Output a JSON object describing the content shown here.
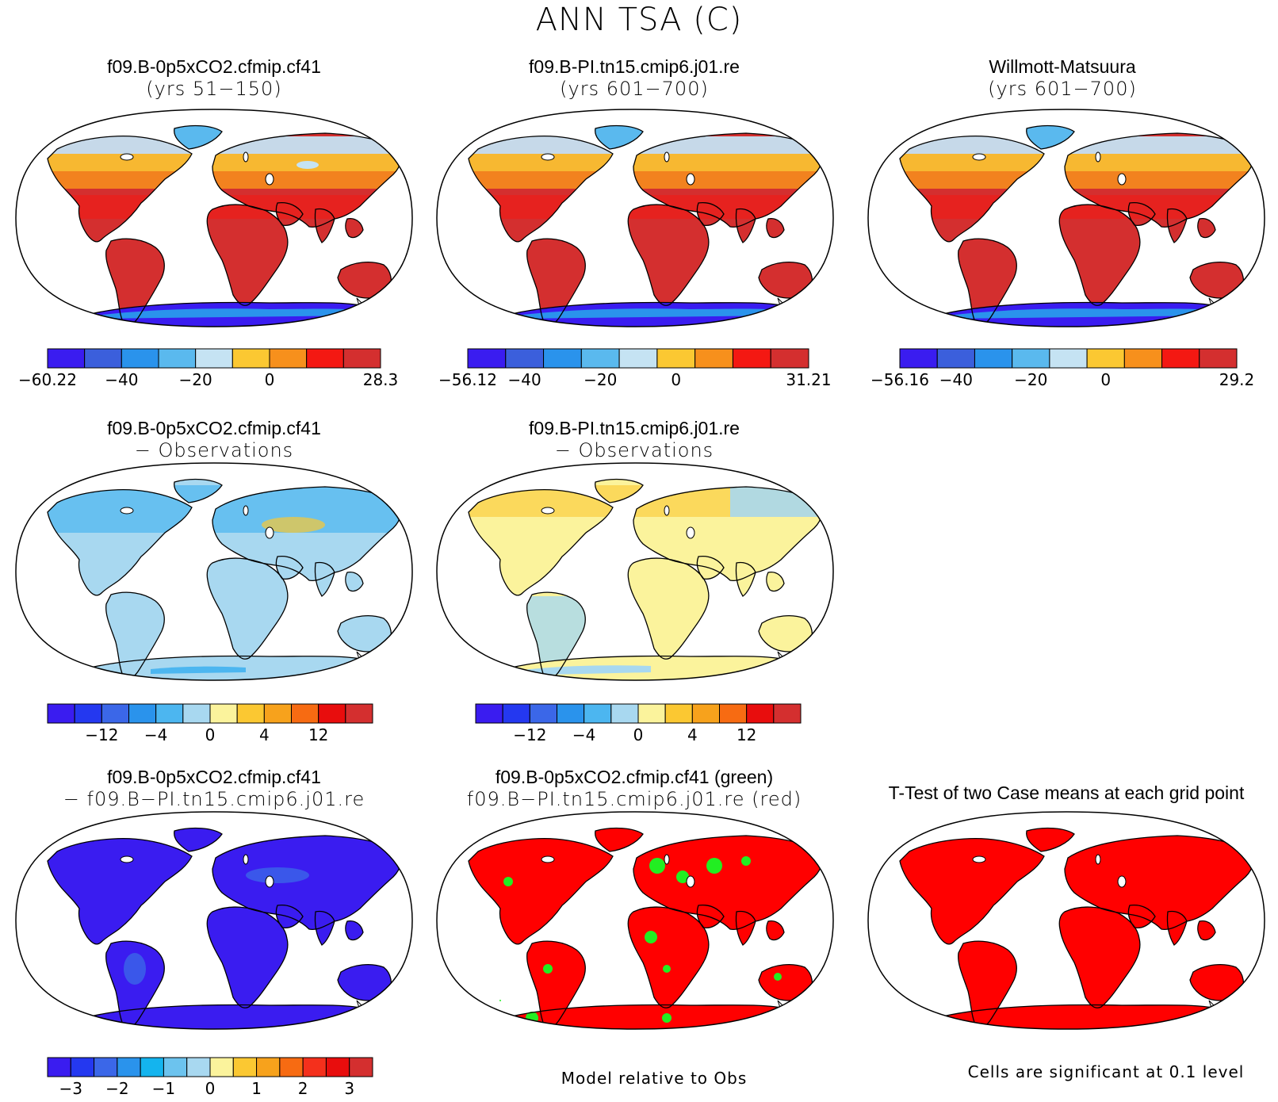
{
  "figure": {
    "title": "ANN TSA (C)"
  },
  "panels": [
    {
      "id": "r1c1",
      "title1": "f09.B-0p5xCO2.cfmip.cf41",
      "title2": "(yrs 51−150)",
      "map_style": "abs-case1"
    },
    {
      "id": "r1c2",
      "title1": "f09.B-PI.tn15.cmip6.j01.re",
      "title2": "(yrs 601−700)",
      "map_style": "abs-case2"
    },
    {
      "id": "r1c3",
      "title1": "Willmott-Matsuura",
      "title2": "(yrs 601−700)",
      "map_style": "abs-obs"
    },
    {
      "id": "r2c1",
      "title1": "f09.B-0p5xCO2.cfmip.cf41",
      "title2": "− Observations",
      "map_style": "diff-cool"
    },
    {
      "id": "r2c2",
      "title1": "f09.B-PI.tn15.cmip6.j01.re",
      "title2": "− Observations",
      "map_style": "diff-mixed"
    },
    {
      "id": "r3c1",
      "title1": "f09.B-0p5xCO2.cfmip.cf41",
      "title2": "− f09.B−PI.tn15.cmip6.j01.re",
      "map_style": "case-diff"
    },
    {
      "id": "r3c2",
      "title1": "f09.B-0p5xCO2.cfmip.cf41 (green)",
      "title2": "f09.B−PI.tn15.cmip6.j01.re (red)",
      "map_style": "relative"
    },
    {
      "id": "r3c3",
      "title1": "T-Test of two Case means at each grid point",
      "title2": "",
      "map_style": "ttest"
    }
  ],
  "colorbars": [
    {
      "id": "cb1",
      "colors": [
        "#3a1cf0",
        "#3b5fdc",
        "#2a93ec",
        "#5ab9ee",
        "#c5e3f3",
        "#fbc832",
        "#f7901c",
        "#f41812",
        "#d42f2f"
      ],
      "labels": [
        "−60.22",
        "−40",
        "−20",
        "0",
        "28.3"
      ],
      "label_pos": [
        0,
        2,
        4,
        6,
        9
      ]
    },
    {
      "id": "cb2",
      "colors": [
        "#3a1cf0",
        "#3b5fdc",
        "#2a93ec",
        "#5ab9ee",
        "#c5e3f3",
        "#fbc832",
        "#f7901c",
        "#f41812",
        "#d42f2f"
      ],
      "labels": [
        "−56.12",
        "−40",
        "−20",
        "0",
        "31.21"
      ],
      "label_pos": [
        0,
        1.5,
        3.5,
        5.5,
        9
      ]
    },
    {
      "id": "cb3",
      "colors": [
        "#3a1cf0",
        "#3b5fdc",
        "#2a93ec",
        "#5ab9ee",
        "#c5e3f3",
        "#fbc832",
        "#f7901c",
        "#f41812",
        "#d42f2f"
      ],
      "labels": [
        "−56.16",
        "−40",
        "−20",
        "0",
        "29.2"
      ],
      "label_pos": [
        0,
        1.5,
        3.5,
        5.5,
        9
      ]
    },
    {
      "id": "cb4",
      "colors": [
        "#3a1cf0",
        "#2438f0",
        "#3b67e8",
        "#2a93ec",
        "#4cb6f0",
        "#a8d8f0",
        "#fbf39c",
        "#fbc832",
        "#f7a21c",
        "#f76b12",
        "#e80d0d",
        "#d42f2f"
      ],
      "labels": [
        "−12",
        "−4",
        "0",
        "4",
        "12"
      ],
      "label_pos": [
        2,
        4,
        6,
        8,
        10
      ]
    },
    {
      "id": "cb5",
      "colors": [
        "#3a1cf0",
        "#2438f0",
        "#3b67e8",
        "#2a93ec",
        "#4cb6f0",
        "#a8d8f0",
        "#fbf39c",
        "#fbc832",
        "#f7a21c",
        "#f76b12",
        "#e80d0d",
        "#d42f2f"
      ],
      "labels": [
        "−12",
        "−4",
        "0",
        "4",
        "12"
      ],
      "label_pos": [
        2,
        4,
        6,
        8,
        10
      ]
    },
    {
      "id": "cb6",
      "colors": [
        "#3a1cf0",
        "#2438f0",
        "#3b67e8",
        "#2a93ec",
        "#14b4ee",
        "#6cc3ee",
        "#a8d8f0",
        "#fbf39c",
        "#fbc832",
        "#f7a21c",
        "#f76b12",
        "#f4301c",
        "#e80d0d",
        "#d42f2f"
      ],
      "labels": [
        "−3",
        "−2",
        "−1",
        "0",
        "1",
        "2",
        "3"
      ],
      "label_pos": [
        1,
        3,
        5,
        7,
        9,
        11,
        13
      ]
    }
  ],
  "captions": {
    "relative": "Model relative to Obs",
    "significance": "Cells are significant at 0.1 level"
  },
  "map_colors": {
    "abs_hot": "#d42f2f",
    "abs_warm": "#f41812",
    "abs_orange": "#f7901c",
    "abs_yellow": "#fbc832",
    "abs_pale": "#c5e3f3",
    "abs_cold": "#5ab9ee",
    "ice1": "#2a93ec",
    "ice2": "#3a1cf0",
    "diff_blue": "#a8d8f0",
    "diff_blue2": "#4cb6f0",
    "diff_yellow": "#fbf39c",
    "diff_orange": "#fbc832",
    "case_diff": "#3a1cf0",
    "case_diff2": "#3b67e8",
    "rel_red": "#ff0000",
    "rel_green": "#22ee22",
    "ttest_red": "#ff0000"
  }
}
